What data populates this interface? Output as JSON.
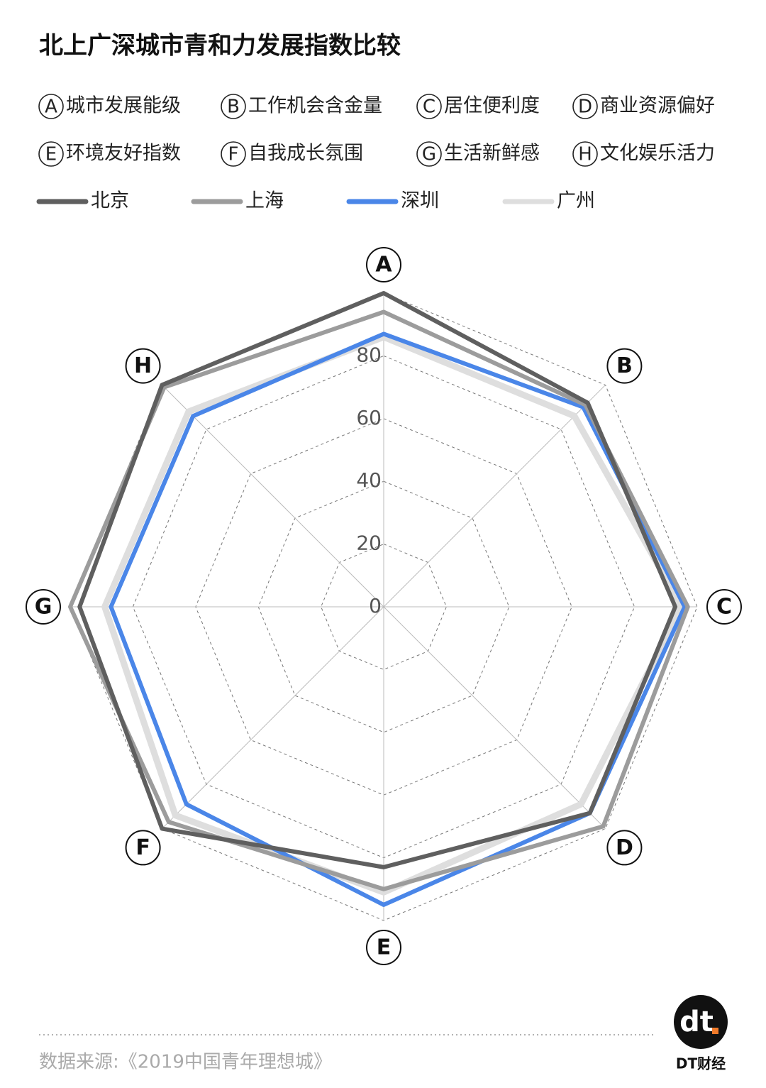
{
  "chart_data": {
    "type": "radar",
    "title": "北上广深城市青和力发展指数比较",
    "categories": [
      "A",
      "B",
      "C",
      "D",
      "E",
      "F",
      "G",
      "H"
    ],
    "category_names": [
      "城市发展能级",
      "工作机会含金量",
      "居住便利度",
      "商业资源偏好",
      "环境友好指数",
      "自我成长氛围",
      "生活新鲜感",
      "文化娱乐活力"
    ],
    "series": [
      {
        "name": "北京",
        "color": "#5f5f5f",
        "values": [
          100,
          92,
          93,
          93,
          83,
          100,
          97,
          100
        ]
      },
      {
        "name": "上海",
        "color": "#9c9c9c",
        "values": [
          94,
          91,
          97,
          99,
          90,
          97,
          100,
          99
        ]
      },
      {
        "name": "深圳",
        "color": "#4a86e8",
        "values": [
          87,
          90,
          96,
          93,
          95,
          89,
          87,
          86
        ]
      },
      {
        "name": "广州",
        "color": "#dedede",
        "values": [
          86,
          86,
          95,
          89,
          91,
          94,
          89,
          88
        ]
      }
    ],
    "ylim": [
      0,
      100
    ],
    "yticks": [
      0,
      20,
      40,
      60,
      80
    ],
    "grid": true,
    "source": "数据来源:《2019中国青年理想城》",
    "logo": "dt",
    "brand": "DT财经"
  }
}
